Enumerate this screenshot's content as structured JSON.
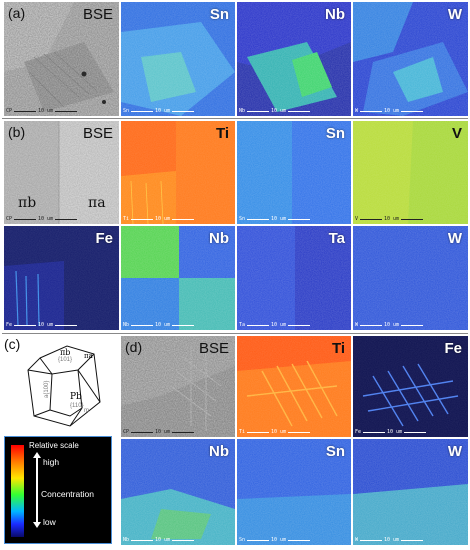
{
  "panels": {
    "a": {
      "letter": "(a)",
      "tiles": [
        {
          "label": "BSE",
          "scale_prefix": "CP",
          "scale_text": "10 um"
        },
        {
          "label": "Sn",
          "scale_prefix": "Sn",
          "scale_text": "10 um"
        },
        {
          "label": "Nb",
          "scale_prefix": "Nb",
          "scale_text": "10 um"
        },
        {
          "label": "W",
          "scale_prefix": "W",
          "scale_text": "10 um"
        }
      ]
    },
    "b": {
      "letter": "(b)",
      "phase_left": "πb",
      "phase_right": "πa",
      "tiles": [
        {
          "label": "BSE",
          "scale_prefix": "CP",
          "scale_text": "10 um"
        },
        {
          "label": "Ti",
          "scale_prefix": "Ti",
          "scale_text": "10 um"
        },
        {
          "label": "Sn",
          "scale_prefix": "Sn",
          "scale_text": "10 um"
        },
        {
          "label": "V",
          "scale_prefix": "V",
          "scale_text": "10 um"
        },
        {
          "label": "Fe",
          "scale_prefix": "Fe",
          "scale_text": "10 um"
        },
        {
          "label": "Nb",
          "scale_prefix": "Nb",
          "scale_text": "10 um"
        },
        {
          "label": "Ta",
          "scale_prefix": "Ta",
          "scale_text": "10 um"
        },
        {
          "label": "W",
          "scale_prefix": "W",
          "scale_text": "10 um"
        }
      ]
    },
    "c": {
      "letter": "(c)",
      "face_top": "πb",
      "face_top_idx": "{101}",
      "face_right": "πa",
      "face_side": "Pb",
      "face_side_idx": "{110}",
      "face_left_idx": "a{100}",
      "face_right_small": "m"
    },
    "d": {
      "letter": "(d)",
      "tiles": [
        {
          "label": "BSE",
          "scale_prefix": "CP",
          "scale_text": "10 um"
        },
        {
          "label": "Ti",
          "scale_prefix": "Ti",
          "scale_text": "10 um"
        },
        {
          "label": "Fe",
          "scale_prefix": "Fe",
          "scale_text": "10 um"
        },
        {
          "label": "Nb",
          "scale_prefix": "Nb",
          "scale_text": "10 um"
        },
        {
          "label": "Sn",
          "scale_prefix": "Sn",
          "scale_text": "10 um"
        },
        {
          "label": "W",
          "scale_prefix": "W",
          "scale_text": "10 um"
        }
      ]
    }
  },
  "legend": {
    "title": "Relative scale",
    "high": "high",
    "middle": "Concentration",
    "low": "low"
  }
}
